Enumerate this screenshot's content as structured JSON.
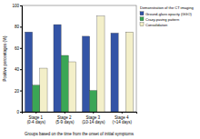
{
  "chart_data": {
    "type": "bar",
    "x_label": "Groups based on the time from the onset of initial symptoms",
    "y_label": "Positive percentages (%)",
    "legend_title": "Demonstration of the CT imaging",
    "categories": [
      "Stage 1 (0-4 days)",
      "Stage 2 (5-9 days)",
      "Stage 3 (10-14 days)",
      "Stage 4 (>14 days)"
    ],
    "series": [
      {
        "name": "Ground-glass opacity (GGO)",
        "color": "#3354a6",
        "values": [
          75,
          82,
          71,
          74
        ]
      },
      {
        "name": "Crazy-paving pattern",
        "color": "#3ba655",
        "values": [
          25,
          53,
          20,
          0
        ]
      },
      {
        "name": "Consolidation",
        "color": "#f3efc9",
        "values": [
          41,
          47,
          90,
          75
        ]
      }
    ],
    "ylim": [
      0,
      100
    ],
    "yticks": [
      0,
      20,
      40,
      60,
      80,
      100
    ],
    "grid": false,
    "legend": "right"
  }
}
